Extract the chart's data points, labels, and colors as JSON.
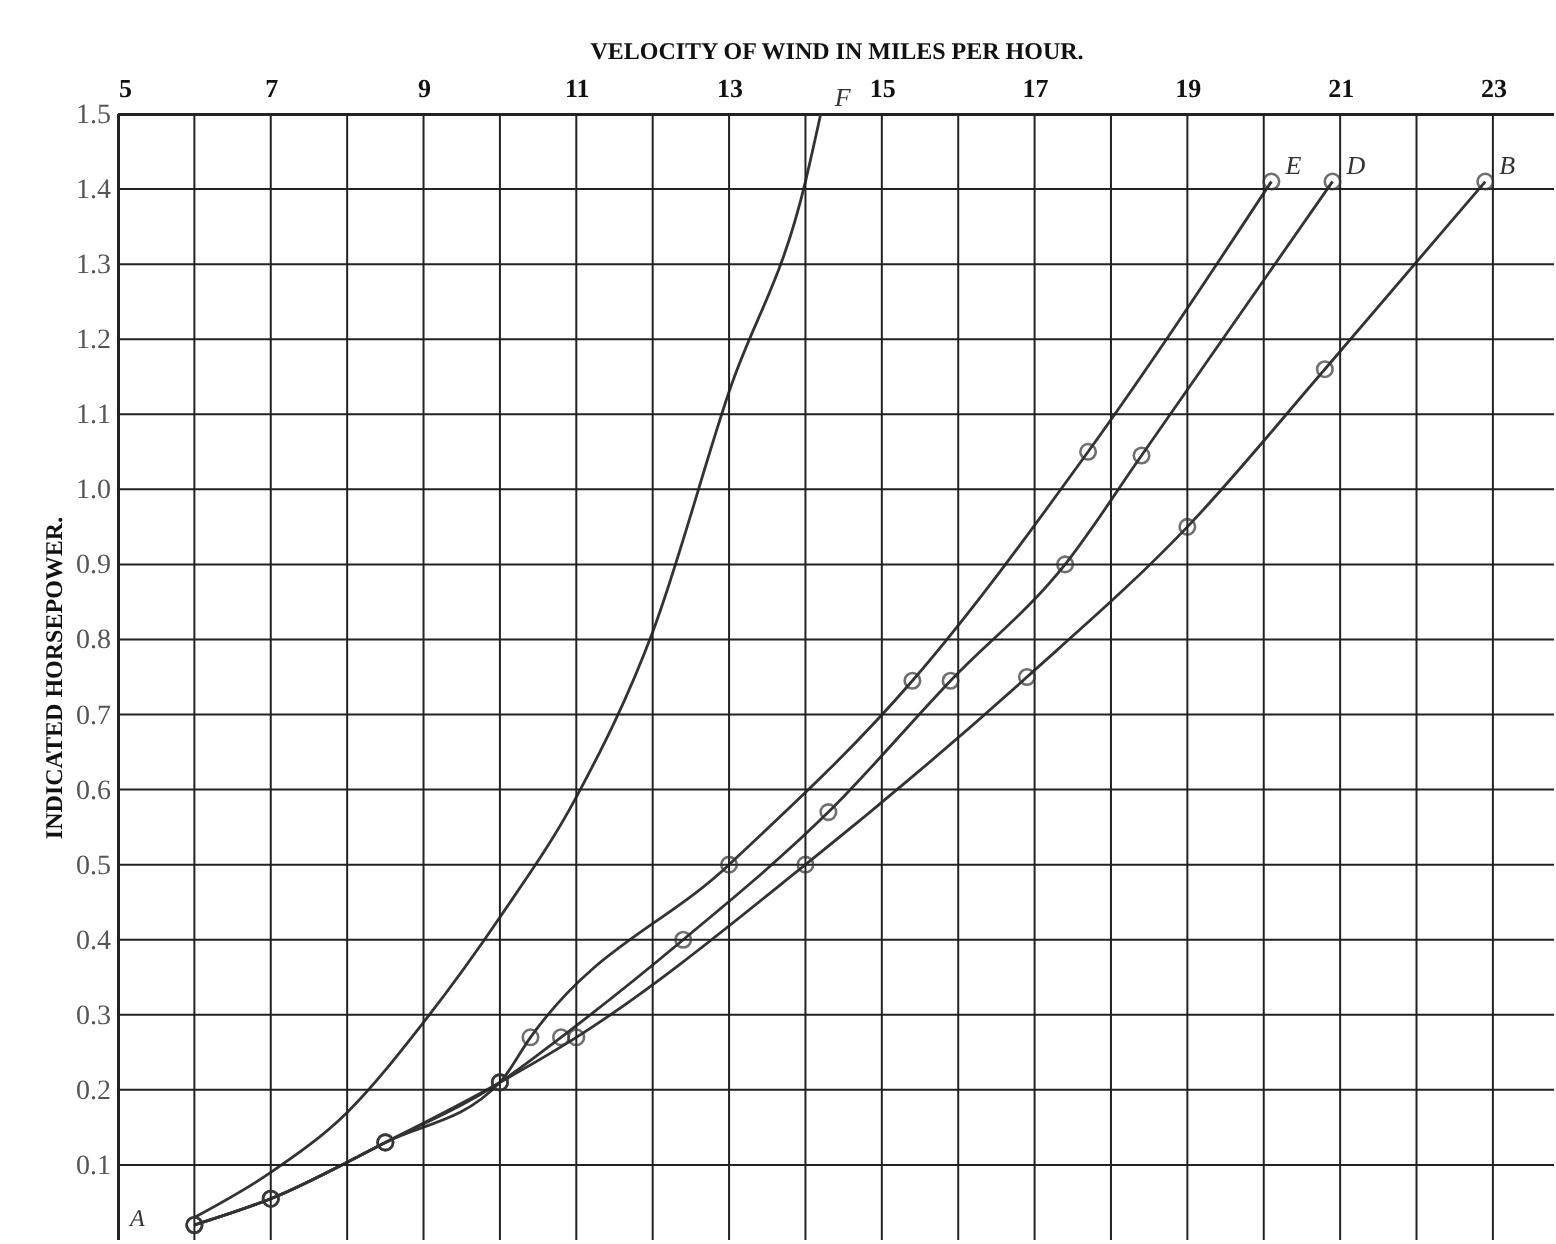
{
  "chart_data": {
    "type": "line",
    "xlabel": "VELOCITY OF WIND IN MILES PER HOUR.",
    "ylabel": "INDICATED HORSEPOWER.",
    "xlim": [
      5,
      23.8
    ],
    "ylim": [
      0,
      1.5
    ],
    "xticks": [
      5,
      {
        "value": 6,
        "label": null
      },
      7,
      {
        "value": 8,
        "label": null
      },
      9,
      {
        "value": 10,
        "label": null
      },
      11,
      {
        "value": 12,
        "label": null
      },
      13,
      {
        "value": 14,
        "label": null
      },
      15,
      {
        "value": 16,
        "label": null
      },
      17,
      {
        "value": 18,
        "label": null
      },
      19,
      {
        "value": 20,
        "label": null
      },
      21,
      {
        "value": 22,
        "label": null
      },
      23
    ],
    "yticks": [
      0.1,
      0.2,
      0.3,
      0.4,
      0.5,
      0.6,
      0.7,
      0.8,
      0.9,
      {
        "value": 1,
        "label": "1.0"
      },
      1.1,
      1.2,
      1.3,
      1.4,
      1.5
    ],
    "grid": true,
    "marker": "circle",
    "line_style": "solid",
    "annotations": [
      "A"
    ],
    "series": [
      {
        "name": "E",
        "color": "#333333",
        "x": [
          6.0,
          7.0,
          8.5,
          10.0,
          10.4,
          13.0,
          15.4,
          17.7,
          20.1
        ],
        "values": [
          0.02,
          0.055,
          0.13,
          0.21,
          0.27,
          0.5,
          0.745,
          1.05,
          1.41
        ]
      },
      {
        "name": "D",
        "color": "#333333",
        "x": [
          6.0,
          7.0,
          8.5,
          10.0,
          10.8,
          12.4,
          14.3,
          15.9,
          17.4,
          18.4,
          20.9
        ],
        "values": [
          0.02,
          0.055,
          0.13,
          0.21,
          0.27,
          0.4,
          0.57,
          0.745,
          0.9,
          1.045,
          1.41
        ]
      },
      {
        "name": "B",
        "color": "#333333",
        "x": [
          6.0,
          7.0,
          8.5,
          10.0,
          11.0,
          14.0,
          16.9,
          19.0,
          20.8,
          22.9
        ],
        "values": [
          0.02,
          0.055,
          0.13,
          0.21,
          0.27,
          0.5,
          0.75,
          0.95,
          1.16,
          1.41
        ]
      },
      {
        "name": "F",
        "color": "#333333",
        "marker": "none",
        "x": [
          6.0,
          7,
          8,
          9,
          10,
          11,
          12,
          13,
          14,
          14.2
        ],
        "values": [
          0.03,
          0.09,
          0.17,
          0.29,
          0.43,
          0.59,
          0.81,
          1.13,
          1.41,
          1.5
        ]
      }
    ]
  }
}
